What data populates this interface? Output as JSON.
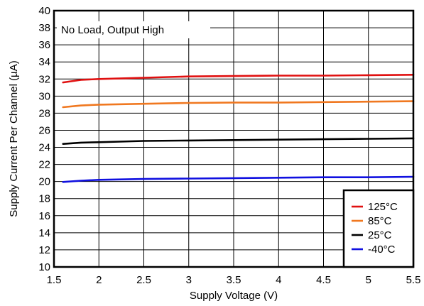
{
  "chart_data": {
    "type": "line",
    "annotation": "No Load, Output High",
    "xlabel": "Supply Voltage (V)",
    "ylabel": "Supply Current Per Channel (µA)",
    "xlim": [
      1.5,
      5.5
    ],
    "ylim": [
      10,
      40
    ],
    "xticks": [
      1.5,
      2,
      2.5,
      3,
      3.5,
      4,
      4.5,
      5,
      5.5
    ],
    "yticks": [
      10,
      12,
      14,
      16,
      18,
      20,
      22,
      24,
      26,
      28,
      30,
      32,
      34,
      36,
      38,
      40
    ],
    "xtick_labels": [
      "1.5",
      "2",
      "2.5",
      "3",
      "3.5",
      "4",
      "4.5",
      "5",
      "5.5"
    ],
    "ytick_labels": [
      "10",
      "12",
      "14",
      "16",
      "18",
      "20",
      "22",
      "24",
      "26",
      "28",
      "30",
      "32",
      "34",
      "36",
      "38",
      "40"
    ],
    "grid": true,
    "legend_position": "bottom-right",
    "series": [
      {
        "name": "125°C",
        "color": "#e01010",
        "x": [
          1.6,
          1.8,
          2.0,
          2.5,
          3.0,
          3.5,
          4.0,
          4.5,
          5.0,
          5.5
        ],
        "y": [
          31.6,
          31.9,
          32.0,
          32.15,
          32.3,
          32.35,
          32.4,
          32.4,
          32.45,
          32.5
        ]
      },
      {
        "name": "85°C",
        "color": "#f07820",
        "x": [
          1.6,
          1.8,
          2.0,
          2.5,
          3.0,
          3.5,
          4.0,
          4.5,
          5.0,
          5.5
        ],
        "y": [
          28.7,
          28.9,
          29.0,
          29.1,
          29.2,
          29.25,
          29.25,
          29.3,
          29.35,
          29.4
        ]
      },
      {
        "name": "25°C",
        "color": "#000000",
        "x": [
          1.6,
          1.8,
          2.0,
          2.5,
          3.0,
          3.5,
          4.0,
          4.5,
          5.0,
          5.5
        ],
        "y": [
          24.4,
          24.55,
          24.6,
          24.75,
          24.8,
          24.85,
          24.9,
          24.95,
          25.0,
          25.05
        ]
      },
      {
        "name": "-40°C",
        "color": "#1010e0",
        "x": [
          1.6,
          1.8,
          2.0,
          2.5,
          3.0,
          3.5,
          4.0,
          4.5,
          5.0,
          5.5
        ],
        "y": [
          19.95,
          20.1,
          20.2,
          20.3,
          20.35,
          20.4,
          20.45,
          20.5,
          20.5,
          20.55
        ]
      }
    ]
  }
}
